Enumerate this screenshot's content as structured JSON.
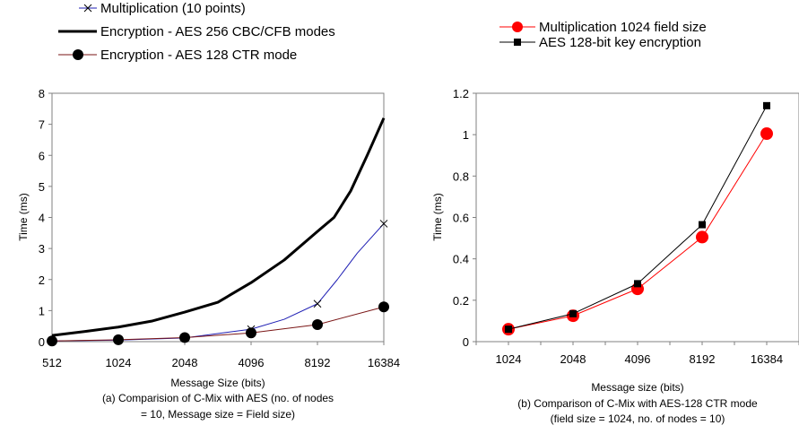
{
  "chart_data": [
    {
      "type": "line",
      "categories": [
        "512",
        "1024",
        "2048",
        "4096",
        "8192",
        "16384"
      ],
      "xlabel": "Message Size (bits)",
      "ylabel": "Time (ms)",
      "ylim": [
        0,
        8
      ],
      "yticks": [
        "0",
        "1",
        "2",
        "3",
        "4",
        "5",
        "6",
        "7",
        "8"
      ],
      "caption": [
        "(a)  Comparision of C-Mix with AES (no. of nodes",
        "= 10, Message size = Field size)"
      ],
      "legend_position": "top",
      "series": [
        {
          "name": "Multiplication (10 points)",
          "color": "#1f1fb4",
          "marker": "x",
          "x": [
            0,
            1,
            2,
            3,
            3.5,
            4,
            4.3,
            4.6,
            5
          ],
          "values": [
            0.02,
            0.05,
            0.12,
            0.4,
            0.72,
            1.22,
            2.0,
            2.85,
            3.8
          ],
          "marker_indices": [
            0,
            1,
            2,
            3,
            5,
            8
          ]
        },
        {
          "name": "Encryption - AES 256 CBC/CFB modes",
          "color": "#000000",
          "marker": "none",
          "x": [
            0,
            0.5,
            1,
            1.5,
            2,
            2.5,
            3,
            3.5,
            4,
            4.25,
            4.5,
            4.75,
            5
          ],
          "values": [
            0.2,
            0.33,
            0.47,
            0.66,
            0.95,
            1.27,
            1.9,
            2.63,
            3.55,
            4.0,
            4.85,
            6.0,
            7.2
          ],
          "marker_indices": []
        },
        {
          "name": "Encryption - AES 128 CTR mode",
          "color": "#7a1616",
          "marker": "circle",
          "x": [
            0,
            1,
            2,
            3,
            4,
            5
          ],
          "values": [
            0.02,
            0.06,
            0.13,
            0.28,
            0.55,
            1.12
          ],
          "marker_indices": [
            0,
            1,
            2,
            3,
            4,
            5
          ]
        }
      ]
    },
    {
      "type": "line",
      "categories": [
        "1024",
        "2048",
        "4096",
        "8192",
        "16384"
      ],
      "xlabel": "Message size (bits)",
      "ylabel": "Time (ms)",
      "ylim": [
        0,
        1.2
      ],
      "yticks": [
        "0",
        "0.2",
        "0.4",
        "0.6",
        "0.8",
        "1",
        "1.2"
      ],
      "caption": [
        "(b) Comparison of C-Mix with AES-128 CTR mode",
        "(field size = 1024, no. of nodes = 10)"
      ],
      "legend_position": "top",
      "series": [
        {
          "name": "Multiplication 1024 field size",
          "color": "#ff0000",
          "marker": "circle",
          "values": [
            0.06,
            0.125,
            0.255,
            0.505,
            1.005
          ]
        },
        {
          "name": "AES 128-bit key encryption",
          "color": "#000000",
          "marker": "square",
          "values": [
            0.06,
            0.135,
            0.28,
            0.565,
            1.14
          ]
        }
      ]
    }
  ]
}
